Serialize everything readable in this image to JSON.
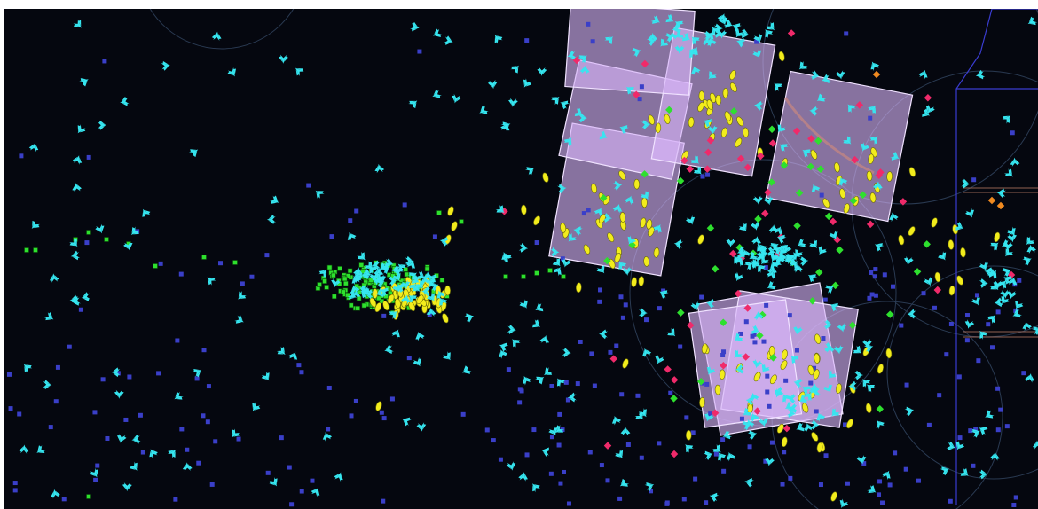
{
  "game": {
    "view": "tactical-space-map",
    "colors": {
      "background": "#05070f",
      "cyan_unit": "#36e6f0",
      "yellow_unit": "#f2ec1c",
      "green_unit": "#2ee02e",
      "blue_marker": "#3a3fc8",
      "magenta_marker": "#f02a6a",
      "orange_marker": "#f08a20",
      "selection_fill": "#d8b4f8",
      "selection_stroke": "#f0e2ff",
      "range_circle": "#2a3a52",
      "border_line": "#3a3cd0"
    },
    "icons": {
      "fighter": "cyan-fighter-icon",
      "capsule": "yellow-capsule-icon",
      "square": "green-square-icon",
      "diamond": "green-diamond-icon",
      "marker": "blue-square-marker-icon",
      "hostile": "magenta-diamond-icon"
    }
  }
}
